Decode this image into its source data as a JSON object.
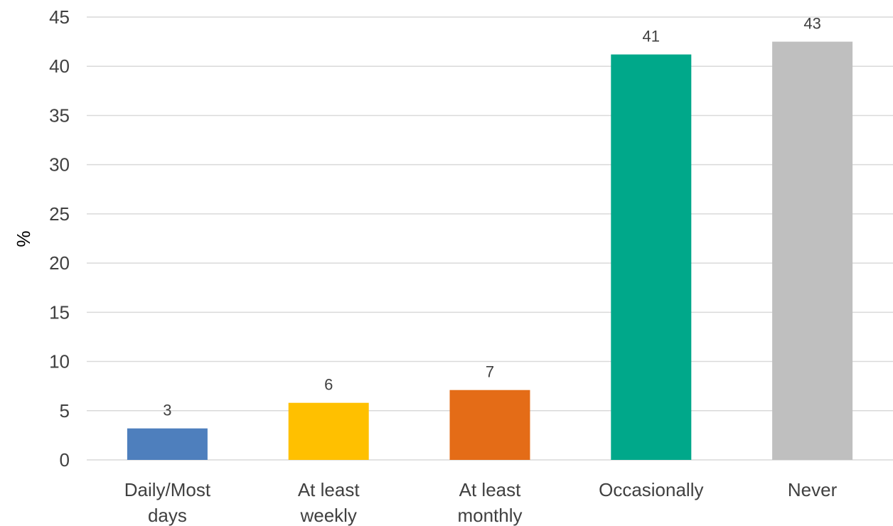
{
  "chart_data": {
    "type": "bar",
    "title": "",
    "xlabel": "",
    "ylabel": "%",
    "ylim": [
      0,
      45
    ],
    "y_ticks": [
      0,
      5,
      10,
      15,
      20,
      25,
      30,
      35,
      40,
      45
    ],
    "grid": true,
    "legend": "none",
    "categories": [
      [
        "Daily/Most",
        "days"
      ],
      [
        "At least",
        "weekly"
      ],
      [
        "At least",
        "monthly"
      ],
      [
        "Occasionally"
      ],
      [
        "Never"
      ]
    ],
    "values": [
      3.2,
      5.8,
      7.1,
      41.2,
      42.5
    ],
    "data_labels": [
      "3",
      "6",
      "7",
      "41",
      "43"
    ],
    "colors": [
      "#4e7fbd",
      "#ffc000",
      "#e46c17",
      "#00a88a",
      "#bfbfbf"
    ]
  }
}
